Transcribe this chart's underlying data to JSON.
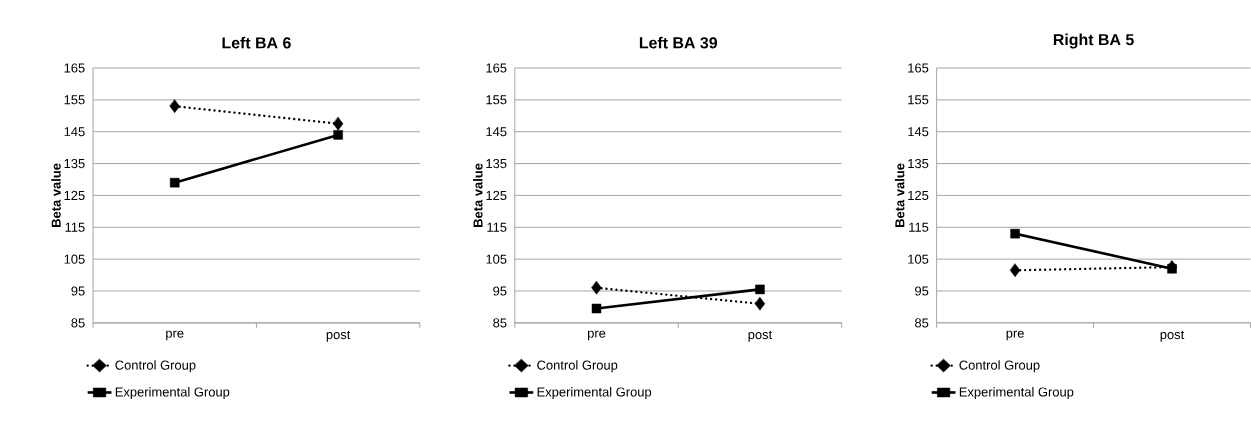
{
  "chart_data": [
    {
      "type": "line",
      "title": "Left BA 6",
      "ylabel": "Beta value",
      "categories": [
        "pre",
        "post"
      ],
      "ylim": [
        85,
        165
      ],
      "yticks": [
        85,
        95,
        105,
        115,
        125,
        135,
        145,
        155,
        165
      ],
      "grid": "y",
      "legend": "bottom",
      "series": [
        {
          "name": "Control Group",
          "color": "#000000",
          "values": [
            153,
            147.5
          ],
          "marker": "diamond",
          "line_style": "dotted"
        },
        {
          "name": "Experimental Group",
          "color": "#000000",
          "values": [
            129,
            144
          ],
          "marker": "square",
          "line_style": "solid"
        }
      ]
    },
    {
      "type": "line",
      "title": "Left BA 39",
      "ylabel": "Beta value",
      "categories": [
        "pre",
        "post"
      ],
      "ylim": [
        85,
        165
      ],
      "yticks": [
        85,
        95,
        105,
        115,
        125,
        135,
        145,
        155,
        165
      ],
      "grid": "y",
      "legend": "bottom",
      "series": [
        {
          "name": "Control Group",
          "color": "#000000",
          "values": [
            96,
            91
          ],
          "marker": "diamond",
          "line_style": "dotted"
        },
        {
          "name": "Experimental Group",
          "color": "#000000",
          "values": [
            89.5,
            95.5
          ],
          "marker": "square",
          "line_style": "solid"
        }
      ]
    },
    {
      "type": "line",
      "title": "Right BA 5",
      "ylabel": "Beta value",
      "categories": [
        "pre",
        "post"
      ],
      "ylim": [
        85,
        165
      ],
      "yticks": [
        85,
        95,
        105,
        115,
        125,
        135,
        145,
        155,
        165
      ],
      "grid": "y",
      "legend": "bottom",
      "series": [
        {
          "name": "Control Group",
          "color": "#000000",
          "values": [
            101.5,
            102.5
          ],
          "marker": "diamond",
          "line_style": "dotted"
        },
        {
          "name": "Experimental Group",
          "color": "#000000",
          "values": [
            113,
            102
          ],
          "marker": "square",
          "line_style": "solid"
        }
      ]
    }
  ]
}
